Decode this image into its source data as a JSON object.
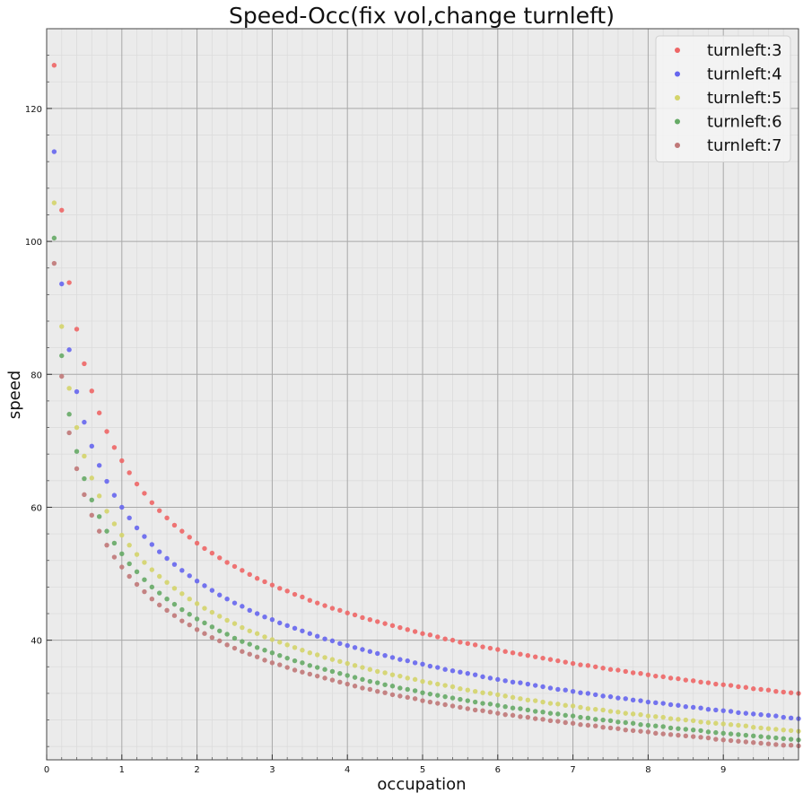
{
  "chart_data": {
    "type": "scatter",
    "title": "Speed-Occ(fix vol,change turnleft)",
    "xlabel": "occupation",
    "ylabel": "speed",
    "xlim": [
      0,
      10
    ],
    "ylim": [
      22,
      132
    ],
    "x_ticks": [
      "0",
      "1",
      "2",
      "3",
      "4",
      "5",
      "6",
      "7",
      "8",
      "9"
    ],
    "y_ticks": [
      "40",
      "60",
      "80",
      "100",
      "120"
    ],
    "grid": true,
    "legend_position": "top-right",
    "x": [
      0.1,
      0.2,
      0.3,
      0.4,
      0.5,
      0.6,
      0.7,
      0.8,
      0.9,
      1.0,
      1.1,
      1.2,
      1.3,
      1.4,
      1.5,
      1.6,
      1.7,
      1.8,
      1.9,
      2.0,
      2.1,
      2.2,
      2.3,
      2.4,
      2.5,
      2.6,
      2.7,
      2.8,
      2.9,
      3.0,
      3.1,
      3.2,
      3.3,
      3.4,
      3.5,
      3.6,
      3.7,
      3.8,
      3.9,
      4.0,
      4.1,
      4.2,
      4.3,
      4.4,
      4.5,
      4.6,
      4.7,
      4.8,
      4.9,
      5.0,
      5.1,
      5.2,
      5.3,
      5.4,
      5.5,
      5.6,
      5.7,
      5.8,
      5.9,
      6.0,
      6.1,
      6.2,
      6.3,
      6.4,
      6.5,
      6.6,
      6.7,
      6.8,
      6.9,
      7.0,
      7.1,
      7.2,
      7.3,
      7.4,
      7.5,
      7.6,
      7.7,
      7.8,
      7.9,
      8.0,
      8.1,
      8.2,
      8.3,
      8.4,
      8.5,
      8.6,
      8.7,
      8.8,
      8.9,
      9.0,
      9.1,
      9.2,
      9.3,
      9.4,
      9.5,
      9.6,
      9.7,
      9.8,
      9.9,
      10.0
    ],
    "series": [
      {
        "name": "turnleft:3",
        "color": "#ee6666",
        "values": [
          126.5,
          104.7,
          93.8,
          86.8,
          81.6,
          77.5,
          74.2,
          71.4,
          69.0,
          67.0,
          65.2,
          63.5,
          62.1,
          60.7,
          59.5,
          58.4,
          57.3,
          56.4,
          55.5,
          54.6,
          53.8,
          53.1,
          52.4,
          51.7,
          51.1,
          50.5,
          49.9,
          49.3,
          48.8,
          48.3,
          47.8,
          47.4,
          46.9,
          46.5,
          46.0,
          45.6,
          45.2,
          44.8,
          44.5,
          44.1,
          43.8,
          43.4,
          43.1,
          42.8,
          42.5,
          42.2,
          41.9,
          41.6,
          41.3,
          41.0,
          40.8,
          40.5,
          40.2,
          40.0,
          39.7,
          39.5,
          39.3,
          39.0,
          38.8,
          38.6,
          38.3,
          38.1,
          37.9,
          37.7,
          37.5,
          37.3,
          37.1,
          36.9,
          36.7,
          36.5,
          36.3,
          36.2,
          36.0,
          35.8,
          35.6,
          35.5,
          35.3,
          35.1,
          35.0,
          34.8,
          34.6,
          34.5,
          34.3,
          34.2,
          34.0,
          33.9,
          33.7,
          33.6,
          33.4,
          33.3,
          33.2,
          33.0,
          32.9,
          32.7,
          32.6,
          32.5,
          32.3,
          32.2,
          32.1,
          32.0
        ]
      },
      {
        "name": "turnleft:4",
        "color": "#6666ee",
        "values": [
          113.5,
          93.6,
          83.7,
          77.4,
          72.8,
          69.2,
          66.3,
          63.9,
          61.8,
          60.0,
          58.4,
          56.9,
          55.6,
          54.4,
          53.3,
          52.3,
          51.4,
          50.5,
          49.7,
          48.9,
          48.2,
          47.5,
          46.8,
          46.2,
          45.6,
          45.1,
          44.5,
          44.0,
          43.5,
          43.1,
          42.6,
          42.2,
          41.8,
          41.4,
          41.0,
          40.6,
          40.2,
          39.9,
          39.5,
          39.2,
          38.9,
          38.6,
          38.3,
          38.0,
          37.7,
          37.4,
          37.1,
          36.9,
          36.6,
          36.4,
          36.1,
          35.9,
          35.6,
          35.4,
          35.2,
          35.0,
          34.8,
          34.5,
          34.3,
          34.1,
          33.9,
          33.7,
          33.6,
          33.4,
          33.2,
          33.0,
          32.8,
          32.6,
          32.5,
          32.3,
          32.1,
          32.0,
          31.8,
          31.6,
          31.5,
          31.3,
          31.2,
          31.0,
          30.9,
          30.7,
          30.6,
          30.5,
          30.3,
          30.2,
          30.0,
          29.9,
          29.8,
          29.6,
          29.5,
          29.4,
          29.3,
          29.1,
          29.0,
          28.9,
          28.8,
          28.7,
          28.6,
          28.4,
          28.3,
          28.2
        ]
      },
      {
        "name": "turnleft:5",
        "color": "#d4d46a",
        "values": [
          105.8,
          87.2,
          77.9,
          72.0,
          67.7,
          64.4,
          61.7,
          59.4,
          57.5,
          55.8,
          54.3,
          52.9,
          51.7,
          50.6,
          49.6,
          48.7,
          47.8,
          47.0,
          46.2,
          45.5,
          44.8,
          44.2,
          43.6,
          43.0,
          42.5,
          41.9,
          41.4,
          41.0,
          40.5,
          40.1,
          39.7,
          39.3,
          38.9,
          38.5,
          38.1,
          37.8,
          37.4,
          37.1,
          36.8,
          36.5,
          36.2,
          35.9,
          35.6,
          35.3,
          35.1,
          34.8,
          34.6,
          34.3,
          34.1,
          33.8,
          33.6,
          33.4,
          33.2,
          33.0,
          32.7,
          32.5,
          32.3,
          32.1,
          32.0,
          31.8,
          31.6,
          31.4,
          31.2,
          31.0,
          30.9,
          30.7,
          30.5,
          30.4,
          30.2,
          30.1,
          29.9,
          29.7,
          29.6,
          29.5,
          29.3,
          29.2,
          29.0,
          28.9,
          28.8,
          28.6,
          28.5,
          28.4,
          28.2,
          28.1,
          28.0,
          27.9,
          27.7,
          27.6,
          27.5,
          27.4,
          27.3,
          27.2,
          27.1,
          26.9,
          26.8,
          26.7,
          26.6,
          26.5,
          26.4,
          26.3
        ]
      },
      {
        "name": "turnleft:6",
        "color": "#66aa66",
        "values": [
          100.5,
          82.8,
          74.0,
          68.4,
          64.3,
          61.1,
          58.6,
          56.4,
          54.6,
          53.0,
          51.5,
          50.3,
          49.1,
          48.0,
          47.1,
          46.2,
          45.4,
          44.6,
          43.9,
          43.2,
          42.6,
          42.0,
          41.4,
          40.9,
          40.3,
          39.8,
          39.4,
          38.9,
          38.5,
          38.1,
          37.7,
          37.3,
          36.9,
          36.6,
          36.2,
          35.9,
          35.6,
          35.3,
          35.0,
          34.7,
          34.4,
          34.1,
          33.8,
          33.6,
          33.3,
          33.1,
          32.8,
          32.6,
          32.4,
          32.1,
          31.9,
          31.7,
          31.5,
          31.3,
          31.1,
          30.9,
          30.7,
          30.5,
          30.4,
          30.2,
          30.0,
          29.8,
          29.7,
          29.5,
          29.3,
          29.2,
          29.0,
          28.9,
          28.7,
          28.6,
          28.4,
          28.3,
          28.1,
          28.0,
          27.9,
          27.7,
          27.6,
          27.5,
          27.3,
          27.2,
          27.1,
          27.0,
          26.8,
          26.7,
          26.6,
          26.5,
          26.4,
          26.2,
          26.1,
          26.0,
          25.9,
          25.8,
          25.7,
          25.6,
          25.5,
          25.4,
          25.3,
          25.2,
          25.1,
          25.0
        ]
      },
      {
        "name": "turnleft:7",
        "color": "#c07878",
        "values": [
          96.7,
          79.7,
          71.2,
          65.8,
          61.9,
          58.8,
          56.4,
          54.3,
          52.5,
          51.0,
          49.6,
          48.4,
          47.3,
          46.2,
          45.3,
          44.5,
          43.7,
          42.9,
          42.3,
          41.6,
          41.0,
          40.4,
          39.9,
          39.3,
          38.8,
          38.3,
          37.9,
          37.5,
          37.0,
          36.6,
          36.3,
          35.9,
          35.5,
          35.2,
          34.9,
          34.6,
          34.3,
          34.0,
          33.7,
          33.4,
          33.1,
          32.8,
          32.6,
          32.3,
          32.1,
          31.8,
          31.6,
          31.4,
          31.2,
          30.9,
          30.7,
          30.5,
          30.3,
          30.1,
          29.9,
          29.7,
          29.5,
          29.4,
          29.2,
          29.0,
          28.8,
          28.7,
          28.5,
          28.4,
          28.2,
          28.1,
          27.9,
          27.8,
          27.6,
          27.5,
          27.3,
          27.2,
          27.1,
          26.9,
          26.8,
          26.7,
          26.5,
          26.4,
          26.3,
          26.2,
          26.0,
          25.9,
          25.8,
          25.7,
          25.6,
          25.5,
          25.4,
          25.3,
          25.1,
          25.0,
          24.9,
          24.8,
          24.7,
          24.6,
          24.5,
          24.4,
          24.3,
          24.2,
          24.2,
          24.1
        ]
      }
    ]
  }
}
